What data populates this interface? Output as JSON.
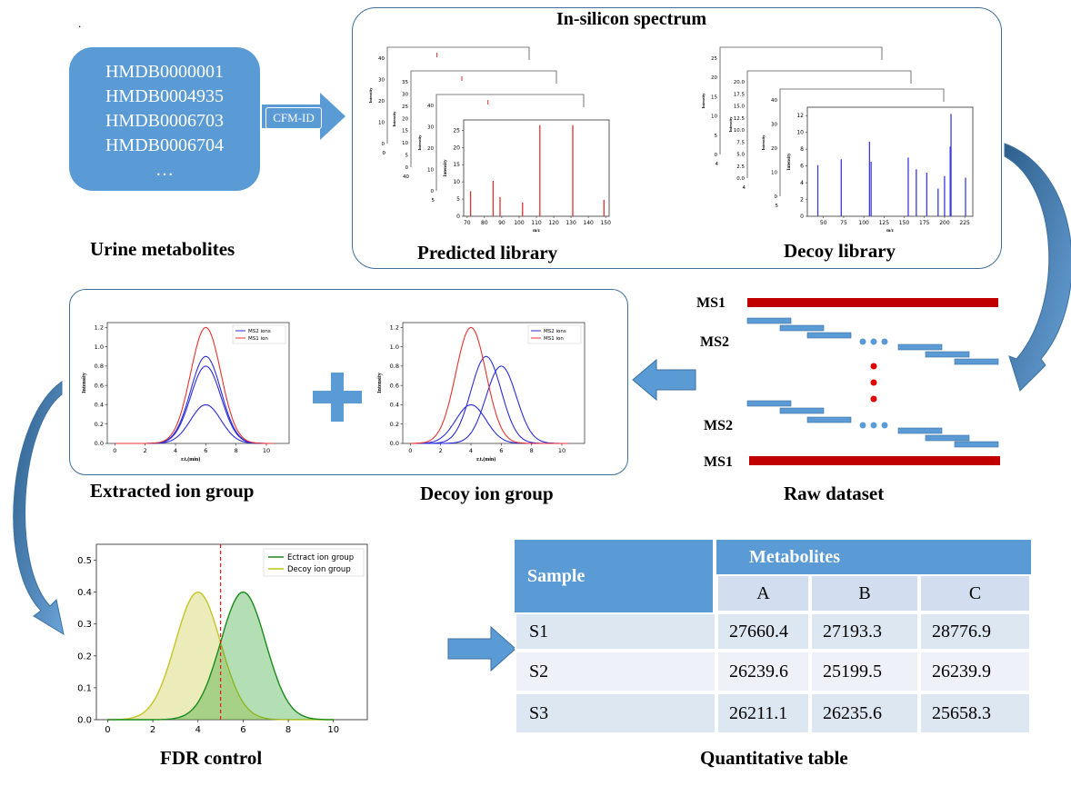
{
  "top_dot": ".",
  "urine": {
    "ids": [
      "HMDB0000001",
      "HMDB0004935",
      "HMDB0006703",
      "HMDB0006704",
      "…"
    ],
    "caption": "Urine metabolites"
  },
  "cfm_label": "CFM-ID",
  "insilico": {
    "title": "In-silicon spectrum",
    "predicted_caption": "Predicted library",
    "decoy_caption": "Decoy library",
    "predicted_front": {
      "xlabel": "m/z",
      "ylabel": "Intensity",
      "xticks": [
        "70",
        "80",
        "90",
        "100",
        "110",
        "120",
        "130",
        "140",
        "150"
      ],
      "yticks": [
        "0",
        "5",
        "10",
        "15",
        "20",
        "25"
      ],
      "back_yticks": [
        [
          "0",
          "10",
          "20",
          "30",
          "40"
        ],
        [
          "0",
          "5",
          "10",
          "15",
          "20",
          "25",
          "30",
          "35"
        ],
        [
          "0",
          "10",
          "20",
          "30",
          "40"
        ]
      ],
      "back_fragments": [
        "0",
        "40",
        "5"
      ],
      "color": "#e03030"
    },
    "decoy_front": {
      "xlabel": "m/z",
      "ylabel": "Intensity",
      "xticks": [
        "50",
        "75",
        "100",
        "125",
        "150",
        "175",
        "200",
        "225"
      ],
      "yticks": [
        "0",
        "2",
        "4",
        "6",
        "8",
        "10",
        "12"
      ],
      "back_yticks": [
        [
          "0",
          "5",
          "10",
          "15",
          "20",
          "25"
        ],
        [
          "0.0",
          "2.5",
          "5.0",
          "7.5",
          "10.0",
          "12.5",
          "15.0",
          "17.5",
          "20.0"
        ],
        [
          "0",
          "10",
          "20",
          "30",
          "40"
        ]
      ],
      "back_fragments": [
        "4",
        "4",
        "5"
      ],
      "color": "#3a3adf"
    }
  },
  "raw_dataset": {
    "caption": "Raw dataset",
    "labels": [
      "MS1",
      "MS2",
      "MS2",
      "MS1"
    ]
  },
  "ion_groups": {
    "extracted_caption": "Extracted ion group",
    "decoy_caption": "Decoy ion group",
    "xlabel": "r.t.(min)",
    "ylabel": "Intensity",
    "xticks": [
      "0",
      "2",
      "4",
      "6",
      "8",
      "10"
    ],
    "yticks": [
      "0.0",
      "0.2",
      "0.4",
      "0.6",
      "0.8",
      "1.0",
      "1.2"
    ],
    "legend": [
      "MS2 ions",
      "MS1 ion"
    ],
    "colors": {
      "ms2": "#2b2bd8",
      "ms1": "#e83030"
    },
    "plus": "+"
  },
  "fdr": {
    "caption": "FDR control",
    "legend": [
      "Ectract ion group",
      "Decoy ion group"
    ],
    "xticks": [
      "0",
      "2",
      "4",
      "6",
      "8",
      "10"
    ],
    "yticks": [
      "0.0",
      "0.1",
      "0.2",
      "0.3",
      "0.4",
      "0.5"
    ],
    "colors": {
      "extract": "#1a8a1a",
      "decoy": "#c4c425",
      "threshold": "#e02020"
    }
  },
  "chart_data": [
    {
      "type": "bar",
      "title": "",
      "xlabel": "m/z",
      "ylabel": "Intensity",
      "xlim": [
        68,
        152
      ],
      "ylim": [
        0,
        28
      ],
      "x": [
        72,
        85,
        89,
        102,
        112,
        131,
        149
      ],
      "values": [
        7.3,
        10.3,
        5.6,
        4.0,
        26.5,
        26.5,
        4.8
      ]
    },
    {
      "type": "bar",
      "title": "",
      "xlabel": "m/z",
      "ylabel": "Intensity",
      "xlim": [
        30,
        235
      ],
      "ylim": [
        0,
        13
      ],
      "x": [
        43,
        72,
        107,
        109,
        155,
        165,
        178,
        192,
        200,
        207,
        208,
        226
      ],
      "values": [
        6.1,
        6.8,
        8.9,
        6.5,
        7.0,
        5.6,
        5.2,
        3.3,
        4.8,
        8.3,
        12.2,
        4.6
      ]
    },
    {
      "type": "line",
      "title": "",
      "xlabel": "r.t.(min)",
      "ylabel": "Intensity",
      "xlim": [
        -0.5,
        11.5
      ],
      "ylim": [
        0,
        1.25
      ],
      "series": [
        {
          "name": "MS2 ions",
          "peak_rt": [
            6,
            6,
            6
          ],
          "heights": [
            0.9,
            0.8,
            0.4
          ],
          "sigma": 1.0
        },
        {
          "name": "MS1 ion",
          "peak_rt": [
            6
          ],
          "heights": [
            1.2
          ],
          "sigma": 1.0
        }
      ]
    },
    {
      "type": "line",
      "title": "",
      "xlabel": "r.t.(min)",
      "ylabel": "Intensity",
      "xlim": [
        -0.5,
        11.5
      ],
      "ylim": [
        0,
        1.25
      ],
      "series": [
        {
          "name": "MS2 ions",
          "peak_rt": [
            5,
            6,
            4
          ],
          "heights": [
            0.9,
            0.8,
            0.4
          ],
          "sigma": 1.0
        },
        {
          "name": "MS1 ion",
          "peak_rt": [
            4
          ],
          "heights": [
            1.2
          ],
          "sigma": 1.0
        }
      ]
    },
    {
      "type": "area",
      "title": "",
      "xlabel": "",
      "ylabel": "",
      "xlim": [
        -0.5,
        11.5
      ],
      "ylim": [
        0,
        0.55
      ],
      "series": [
        {
          "name": "Ectract ion group",
          "mean": 6,
          "sd": 1,
          "peak": 0.4
        },
        {
          "name": "Decoy ion group",
          "mean": 4,
          "sd": 1,
          "peak": 0.4
        }
      ],
      "threshold_x": 5
    }
  ],
  "quant_table": {
    "caption": "Quantitative table",
    "sample_header": "Sample",
    "group_header": "Metabolites",
    "columns": [
      "A",
      "B",
      "C"
    ],
    "rows": [
      {
        "sample": "S1",
        "values": [
          "27660.4",
          "27193.3",
          "28776.9"
        ]
      },
      {
        "sample": "S2",
        "values": [
          "26239.6",
          "25199.5",
          "26239.9"
        ]
      },
      {
        "sample": "S3",
        "values": [
          "26211.1",
          "26235.6",
          "25658.3"
        ]
      }
    ]
  }
}
